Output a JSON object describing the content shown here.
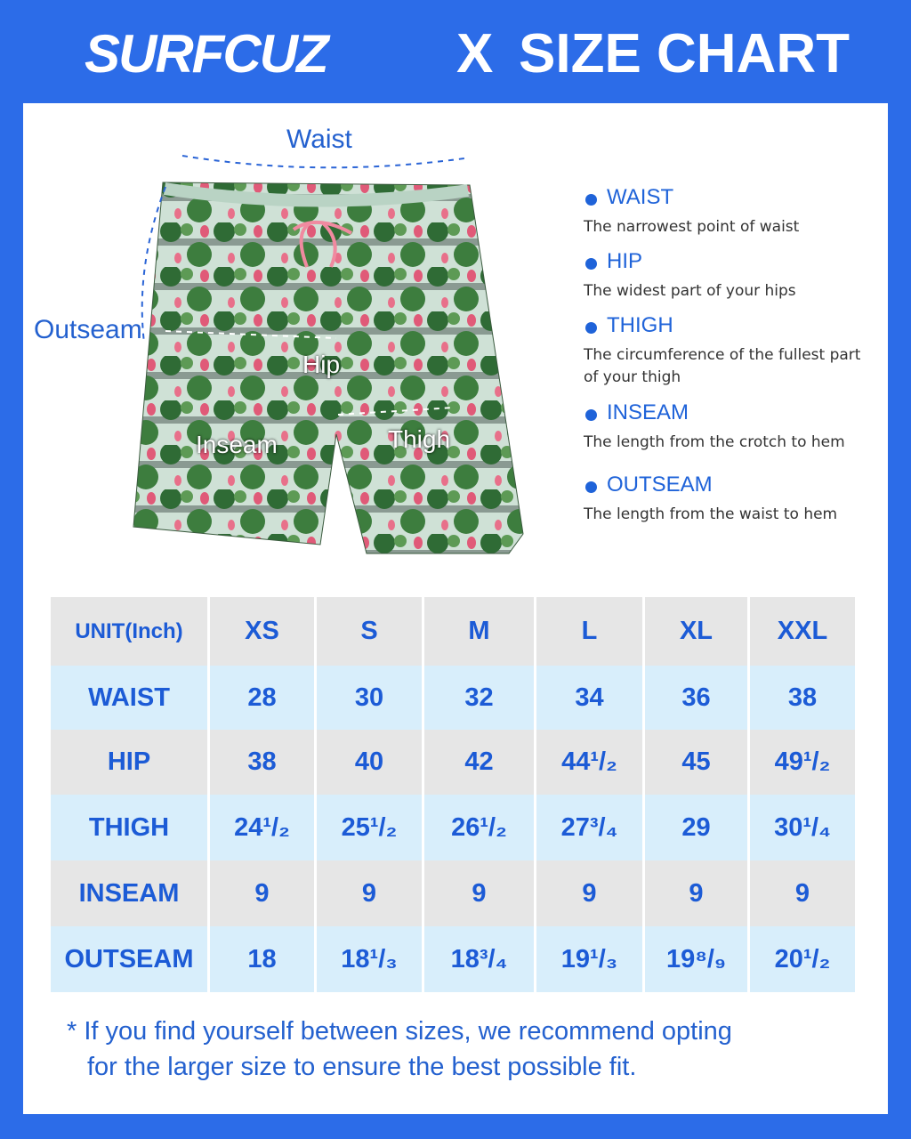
{
  "header": {
    "brand": "SURFCUZ",
    "separator": "X",
    "title": "SIZE CHART"
  },
  "diagram": {
    "labels": {
      "waist": "Waist",
      "outseam": "Outseam",
      "hip": "Hip",
      "inseam": "Inseam",
      "thigh": "Thigh"
    }
  },
  "legend": [
    {
      "title": "WAIST",
      "description": "The narrowest point of waist"
    },
    {
      "title": "HIP",
      "description": "The widest part of your hips"
    },
    {
      "title": "THIGH",
      "description": "The circumference of the fullest part of your thigh"
    },
    {
      "title": "INSEAM",
      "description": "The length from the crotch to hem"
    },
    {
      "title": "OUTSEAM",
      "description": "The length from the waist to hem"
    }
  ],
  "table": {
    "header": [
      "UNIT(Inch)",
      "XS",
      "S",
      "M",
      "L",
      "XL",
      "XXL"
    ],
    "rows": [
      [
        "WAIST",
        "28",
        "30",
        "32",
        "34",
        "36",
        "38"
      ],
      [
        "HIP",
        "38",
        "40",
        "42",
        "44¹/₂",
        "45",
        "49¹/₂"
      ],
      [
        "THIGH",
        "24¹/₂",
        "25¹/₂",
        "26¹/₂",
        "27³/₄",
        "29",
        "30¹/₄"
      ],
      [
        "INSEAM",
        "9",
        "9",
        "9",
        "9",
        "9",
        "9"
      ],
      [
        "OUTSEAM",
        "18",
        "18¹/₃",
        "18³/₄",
        "19¹/₃",
        "19⁸/₉",
        "20¹/₂"
      ]
    ]
  },
  "footnote": [
    "* If you find yourself between sizes, we recommend opting",
    "for the larger size to ensure the best possible fit."
  ]
}
